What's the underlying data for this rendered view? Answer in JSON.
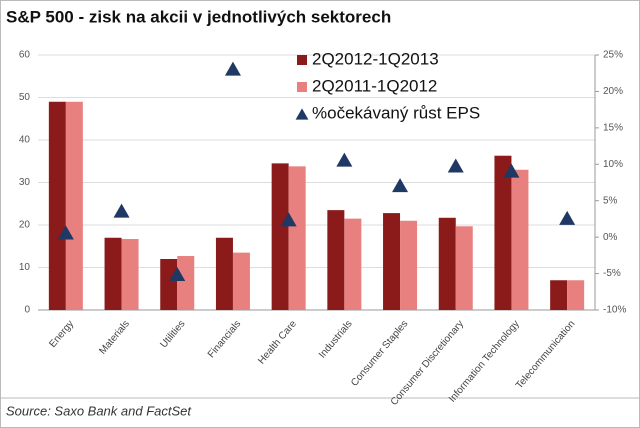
{
  "chart_data": {
    "type": "bar",
    "title": "S&P 500 - zisk na akcii v jednotlivých sektorech",
    "source": "Source: Saxo Bank and FactSet",
    "categories": [
      "Energy",
      "Materials",
      "Utilities",
      "Financials",
      "Health Care",
      "Industrials",
      "Consumer Staples",
      "Consumer Discretionary",
      "Information Technology",
      "Telecommunication"
    ],
    "series": [
      {
        "name": "2Q2012-1Q2013",
        "color": "#8b1a1a",
        "values": [
          49,
          17,
          12,
          17,
          34.5,
          23.5,
          22.8,
          21.7,
          36.3,
          7
        ]
      },
      {
        "name": "2Q2011-1Q2012",
        "color": "#e88080",
        "values": [
          49,
          16.7,
          12.7,
          13.5,
          33.8,
          21.5,
          21,
          19.7,
          33,
          7
        ]
      },
      {
        "name": "%očekávaný růst EPS",
        "color": "#1f3864",
        "axis": "y2",
        "marker": "triangle",
        "values": [
          0.5,
          3.5,
          -5.2,
          23,
          2.3,
          10.5,
          7,
          9.7,
          9,
          2.5
        ]
      }
    ],
    "ylim": [
      0,
      60
    ],
    "yticks": [
      0,
      10,
      20,
      30,
      40,
      50,
      60
    ],
    "y2lim": [
      -10,
      25
    ],
    "y2ticks": [
      {
        "value": -10,
        "label": "-10%"
      },
      {
        "value": -5,
        "label": "-5%"
      },
      {
        "value": 0,
        "label": "0%"
      },
      {
        "value": 5,
        "label": "5%"
      },
      {
        "value": 10,
        "label": "10%"
      },
      {
        "value": 15,
        "label": "15%"
      },
      {
        "value": 20,
        "label": "20%"
      },
      {
        "value": 25,
        "label": "25%"
      }
    ],
    "grid": true
  }
}
